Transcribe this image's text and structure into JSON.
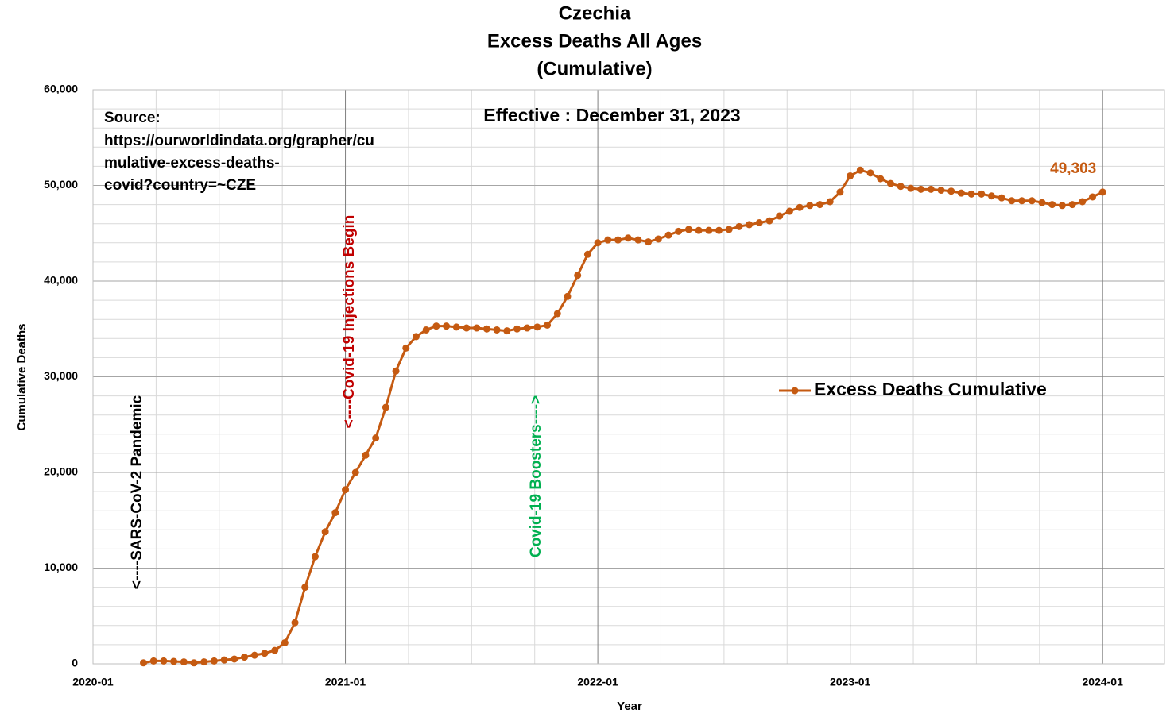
{
  "chart_data": {
    "type": "line",
    "title": [
      "Czechia",
      "Excess Deaths All Ages",
      "(Cumulative)"
    ],
    "subtitle": "Effective : December 31, 2023",
    "source": [
      "Source:",
      "https://ourworldindata.org/grapher/cu",
      "mulative-excess-deaths-",
      "covid?country=~CZE"
    ],
    "annotations": [
      "<----SARS-CoV-2 Pandemic",
      "<----Covid-19 Injections Begin",
      "Covid-19 Boosters---->"
    ],
    "x_label": "Year",
    "y_label": "Cumulative Deaths",
    "xlim": [
      2020,
      2024.245
    ],
    "ylim": [
      0,
      60000
    ],
    "xticks": [
      {
        "value": 2020,
        "label": "2020-01"
      },
      {
        "value": 2021,
        "label": "2021-01"
      },
      {
        "value": 2022,
        "label": "2022-01"
      },
      {
        "value": 2023,
        "label": "2023-01"
      },
      {
        "value": 2024,
        "label": "2024-01"
      }
    ],
    "yticks": [
      0,
      {
        "value": 10000,
        "label": "10,000"
      },
      {
        "value": 20000,
        "label": "20,000"
      },
      {
        "value": 30000,
        "label": "30,000"
      },
      {
        "value": 40000,
        "label": "40,000"
      },
      {
        "value": 50000,
        "label": "50,000"
      },
      {
        "value": 60000,
        "label": "60,000"
      }
    ],
    "grid": true,
    "legend": "right",
    "x": [
      2020.2,
      2020.24,
      2020.28,
      2020.32,
      2020.36,
      2020.4,
      2020.44,
      2020.48,
      2020.52,
      2020.56,
      2020.6,
      2020.64,
      2020.68,
      2020.72,
      2020.76,
      2020.8,
      2020.84,
      2020.88,
      2020.92,
      2020.96,
      2021.0,
      2021.04,
      2021.08,
      2021.12,
      2021.16,
      2021.2,
      2021.24,
      2021.28,
      2021.32,
      2021.36,
      2021.4,
      2021.44,
      2021.48,
      2021.52,
      2021.56,
      2021.6,
      2021.64,
      2021.68,
      2021.72,
      2021.76,
      2021.8,
      2021.84,
      2021.88,
      2021.92,
      2021.96,
      2022.0,
      2022.04,
      2022.08,
      2022.12,
      2022.16,
      2022.2,
      2022.24,
      2022.28,
      2022.32,
      2022.36,
      2022.4,
      2022.44,
      2022.48,
      2022.52,
      2022.56,
      2022.6,
      2022.64,
      2022.68,
      2022.72,
      2022.76,
      2022.8,
      2022.84,
      2022.88,
      2022.92,
      2022.96,
      2023.0,
      2023.04,
      2023.08,
      2023.12,
      2023.16,
      2023.2,
      2023.24,
      2023.28,
      2023.32,
      2023.36,
      2023.4,
      2023.44,
      2023.48,
      2023.52,
      2023.56,
      2023.6,
      2023.64,
      2023.68,
      2023.72,
      2023.76,
      2023.8,
      2023.84,
      2023.88,
      2023.92,
      2023.96,
      2024.0
    ],
    "series": [
      {
        "name": "Excess Deaths Cumulative",
        "color": "#c55a11",
        "values": [
          100,
          300,
          300,
          250,
          200,
          100,
          200,
          300,
          400,
          500,
          700,
          900,
          1100,
          1400,
          2200,
          4300,
          8000,
          11200,
          13800,
          15800,
          18200,
          20000,
          21800,
          23600,
          26800,
          30600,
          33000,
          34200,
          34900,
          35300,
          35300,
          35200,
          35100,
          35100,
          35000,
          34900,
          34800,
          35000,
          35100,
          35200,
          35400,
          36600,
          38400,
          40600,
          42800,
          44000,
          44300,
          44300,
          44500,
          44300,
          44100,
          44400,
          44800,
          45200,
          45400,
          45300,
          45300,
          45300,
          45400,
          45700,
          45900,
          46100,
          46300,
          46800,
          47300,
          47700,
          47900,
          48000,
          48300,
          49300,
          51000,
          51600,
          51300,
          50700,
          50200,
          49900,
          49700,
          49600,
          49600,
          49500,
          49400,
          49200,
          49100,
          49100,
          48900,
          48700,
          48400,
          48400,
          48400,
          48200,
          48000,
          47900,
          48000,
          48300,
          48800,
          49303
        ],
        "value_labels": [
          null,
          null,
          null,
          null,
          null,
          null,
          null,
          null,
          null,
          null,
          null,
          null,
          null,
          null,
          null,
          null,
          null,
          null,
          null,
          null,
          null,
          null,
          null,
          null,
          null,
          null,
          null,
          null,
          null,
          null,
          null,
          null,
          null,
          null,
          null,
          null,
          null,
          null,
          null,
          null,
          null,
          null,
          null,
          null,
          null,
          null,
          null,
          null,
          null,
          null,
          null,
          null,
          null,
          null,
          null,
          null,
          null,
          null,
          null,
          null,
          null,
          null,
          null,
          null,
          null,
          null,
          null,
          null,
          null,
          null,
          null,
          null,
          null,
          null,
          null,
          null,
          null,
          null,
          null,
          null,
          null,
          null,
          null,
          null,
          null,
          null,
          null,
          null,
          null,
          null,
          null,
          null,
          null,
          null,
          null,
          "49,303"
        ]
      }
    ]
  }
}
